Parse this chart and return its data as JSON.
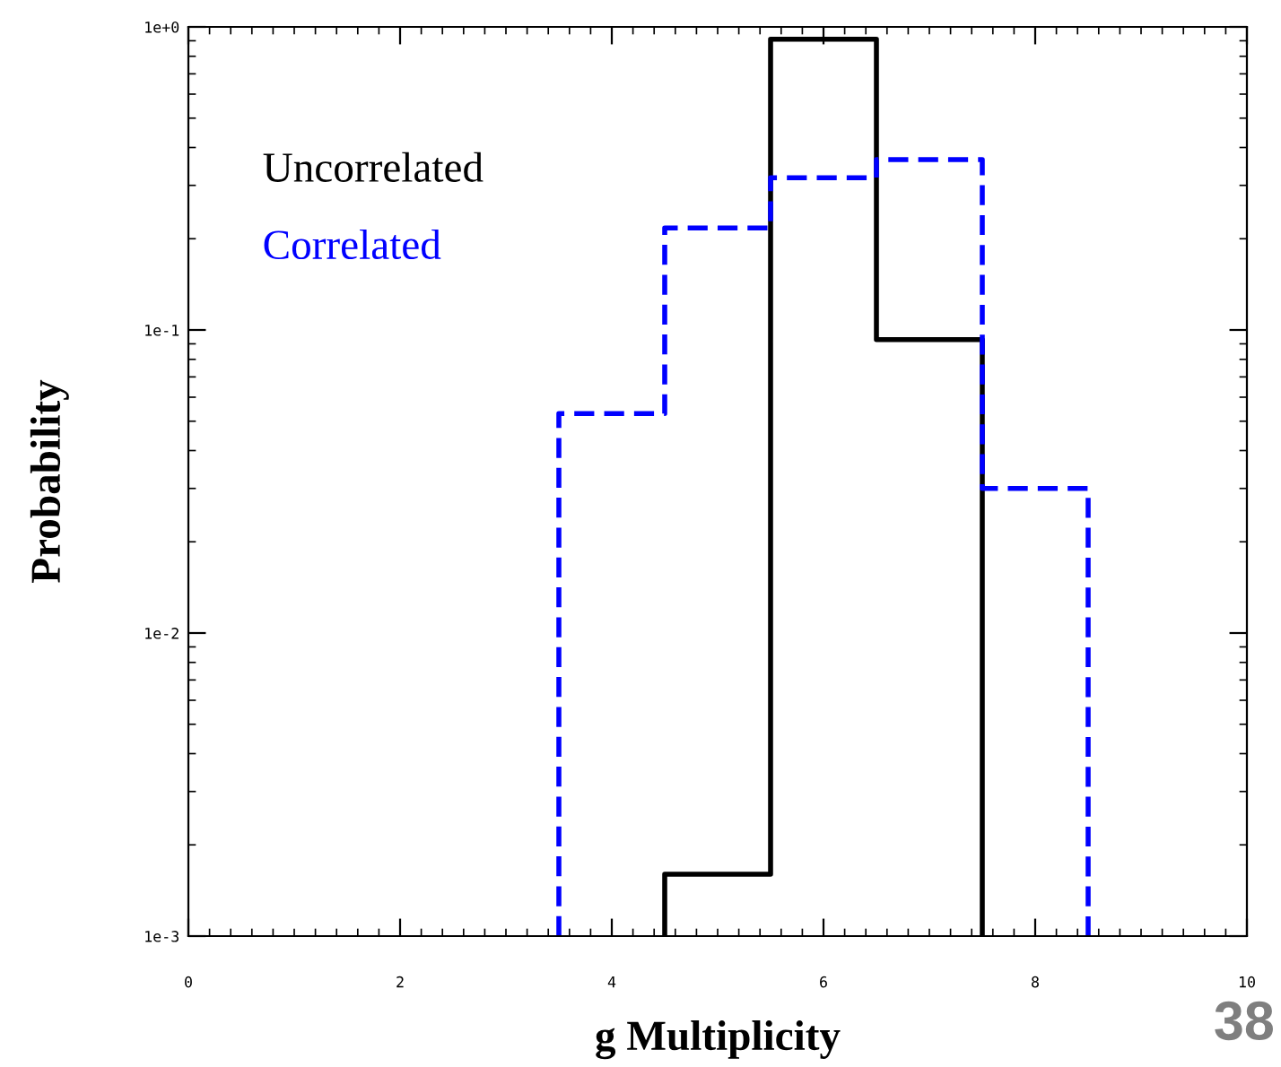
{
  "chart_data": {
    "type": "histogram",
    "xlabel": "g Multiplicity",
    "ylabel": "Probability",
    "bins": [
      3.5,
      4.5,
      5.5,
      6.5,
      7.5,
      8.5
    ],
    "series": [
      {
        "name": "Uncorrelated",
        "color": "#000000",
        "line_style": "solid",
        "bins": [
          4.5,
          5.5,
          6.5,
          7.5
        ],
        "values": [
          0.0016,
          0.91,
          0.093
        ]
      },
      {
        "name": "Correlated",
        "color": "#0000ff",
        "line_style": "dashed",
        "values": [
          0.053,
          0.217,
          0.318,
          0.365,
          0.03
        ]
      }
    ],
    "log": "y",
    "xlim": [
      0,
      10
    ],
    "xticks": [
      0,
      2,
      4,
      6,
      8,
      10
    ],
    "ylim": [
      0.001,
      1
    ],
    "yticks": [
      {
        "value": 0.001,
        "label": "1e-3"
      },
      {
        "value": 0.01,
        "label": "1e-2"
      },
      {
        "value": 0.1,
        "label": "1e-1"
      },
      {
        "value": 1,
        "label": "1e+0"
      }
    ],
    "grid": false,
    "legend": "top left",
    "annotations": [
      "38"
    ]
  }
}
